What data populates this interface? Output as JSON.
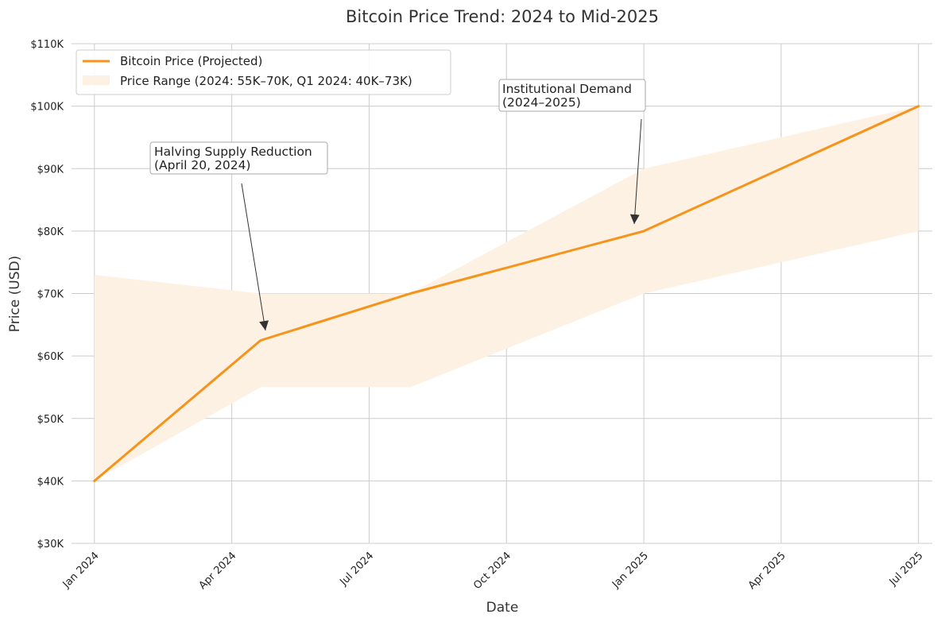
{
  "chart_data": {
    "type": "line",
    "title": "Bitcoin Price Trend: 2024 to Mid-2025",
    "xlabel": "Date",
    "ylabel": "Price (USD)",
    "ylim": [
      30,
      110
    ],
    "y_ticks": [
      30,
      40,
      50,
      60,
      70,
      80,
      90,
      100,
      110
    ],
    "y_tick_labels": [
      "$30K",
      "$40K",
      "$50K",
      "$60K",
      "$70K",
      "$80K",
      "$90K",
      "$100K",
      "$110K"
    ],
    "x_range_months": [
      -0.5,
      18.3
    ],
    "x_ticks": [
      0,
      3,
      6,
      9,
      12,
      15,
      18
    ],
    "x_tick_labels": [
      "Jan 2024",
      "Apr 2024",
      "Jul 2024",
      "Oct 2024",
      "Jan 2025",
      "Apr 2025",
      "Jul 2025"
    ],
    "grid": true,
    "legend_position": "top-left",
    "series": [
      {
        "name": "Bitcoin Price (Projected)",
        "color": "#f7931a",
        "x_months": [
          0,
          3.63,
          6.9,
          12,
          18
        ],
        "values": [
          40,
          62.5,
          70,
          80,
          100
        ]
      }
    ],
    "band": {
      "name": "Price Range (2024: 55K–70K, Q1 2024: 40K–73K)",
      "color": "#fdf1e3",
      "x_months": [
        0,
        3.63,
        6.9,
        12,
        18
      ],
      "lower": [
        40,
        55,
        55,
        70,
        80
      ],
      "upper": [
        73,
        70,
        70,
        90,
        100
      ]
    },
    "annotations": [
      {
        "name": "halving",
        "lines": [
          "Halving Supply Reduction",
          "(April 20, 2024)"
        ],
        "target": [
          3.63,
          62.5
        ]
      },
      {
        "name": "institutional",
        "lines": [
          "Institutional Demand",
          "(2024–2025)"
        ],
        "target": [
          12,
          80
        ]
      }
    ]
  }
}
